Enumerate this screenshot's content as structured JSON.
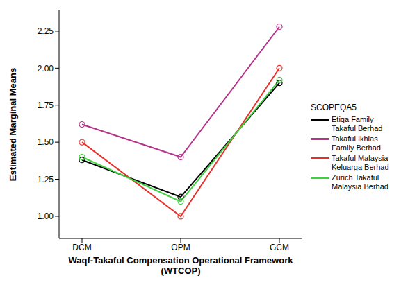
{
  "chart_data": {
    "type": "line",
    "x_label": "Waqf-Takaful Compensation Operational Framework\n(WTCOP)",
    "y_label": "Estimated Marginal Means",
    "legend_title": "SCOPEQA5",
    "legend": "right",
    "grid": false,
    "marker": "circle",
    "categories": [
      "DCM",
      "OPM",
      "GCM"
    ],
    "series": [
      {
        "name": "Etiqa Family Takaful Berhad",
        "color": "#000000",
        "values": [
          1.38,
          1.13,
          1.9
        ]
      },
      {
        "name": "Takaful Ikhlas Family Berhad",
        "color": "#b5338a",
        "values": [
          1.62,
          1.4,
          2.28
        ]
      },
      {
        "name": "Takaful Malaysia Keluarga Berhad",
        "color": "#e8302a",
        "values": [
          1.5,
          1.0,
          2.0
        ]
      },
      {
        "name": "Zurich Takaful Malaysia Berhad",
        "color": "#40cf40",
        "values": [
          1.4,
          1.1,
          1.92
        ]
      }
    ],
    "ylim": [
      0.85,
      2.39
    ],
    "yticks": [
      {
        "value": 1,
        "label": "1.00"
      },
      {
        "value": 1.25,
        "label": "1.25"
      },
      {
        "value": 1.5,
        "label": "1.50"
      },
      {
        "value": 1.75,
        "label": "1.75"
      },
      {
        "value": 2,
        "label": "2.00"
      },
      {
        "value": 2.25,
        "label": "2.25"
      }
    ]
  }
}
